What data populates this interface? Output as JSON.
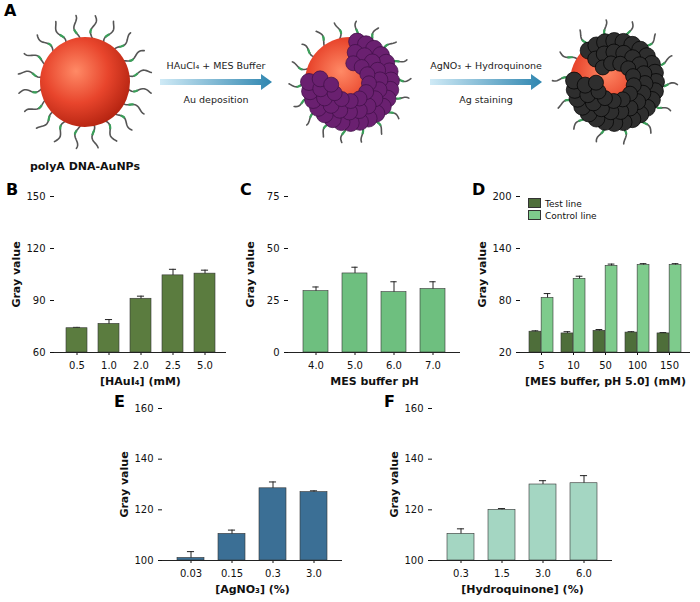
{
  "diagram": {
    "panel": "A",
    "particle_label": "polyA DNA-AuNPs",
    "steps": [
      {
        "reagents": "HAuCl₄ + MES Buffer",
        "process": "Au deposition"
      },
      {
        "reagents": "AgNO₃ + Hydroquinone",
        "process": "Ag staining"
      }
    ]
  },
  "chart_data": [
    {
      "panel": "B",
      "type": "bar",
      "categories": [
        "0.5",
        "1.0",
        "2.0",
        "2.5",
        "5.0"
      ],
      "values": [
        74,
        76.5,
        91,
        104.5,
        105.5
      ],
      "errors": [
        0.5,
        2.5,
        1.5,
        3.5,
        2
      ],
      "x_label": "[HAuI₄] (mM)",
      "y_label": "Gray value",
      "ylim": [
        60,
        150
      ],
      "yticks": [
        60,
        90,
        120,
        150
      ],
      "color": "#5b7c3f"
    },
    {
      "panel": "C",
      "type": "bar",
      "categories": [
        "4.0",
        "5.0",
        "6.0",
        "7.0"
      ],
      "values": [
        29.5,
        38,
        29,
        30.5
      ],
      "errors": [
        2,
        3,
        5,
        3.5
      ],
      "x_label": "MES buffer pH",
      "y_label": "Gray value",
      "ylim": [
        0,
        75
      ],
      "yticks": [
        0,
        25,
        50,
        75
      ],
      "color": "#6ebf7f"
    },
    {
      "panel": "D",
      "type": "bar",
      "categories": [
        "5",
        "10",
        "50",
        "100",
        "150"
      ],
      "series": [
        {
          "name": "Test line",
          "color": "#4e6e3a",
          "values": [
            44,
            42,
            45,
            43,
            42
          ],
          "errors": [
            1,
            2,
            1.5,
            1,
            1
          ]
        },
        {
          "name": "Control line",
          "color": "#7ecb8c",
          "values": [
            83,
            105,
            120,
            121,
            121
          ],
          "errors": [
            5,
            3,
            2,
            1.5,
            1.5
          ]
        }
      ],
      "x_label": "[MES buffer, pH 5.0] (mM)",
      "y_label": "Gray value",
      "ylim": [
        20,
        200
      ],
      "yticks": [
        20,
        80,
        140,
        200
      ],
      "legend": "top-left"
    },
    {
      "panel": "E",
      "type": "bar",
      "categories": [
        "0.03",
        "0.15",
        "0.3",
        "3.0"
      ],
      "values": [
        101,
        110.5,
        128.5,
        127
      ],
      "errors": [
        2.5,
        1.5,
        2.5,
        0.5
      ],
      "x_label": "[AgNO₃] (%)",
      "y_label": "Gray value",
      "ylim": [
        100,
        160
      ],
      "yticks": [
        100,
        120,
        140,
        160
      ],
      "color": "#3b6f95"
    },
    {
      "panel": "F",
      "type": "bar",
      "categories": [
        "0.3",
        "1.5",
        "3.0",
        "6.0"
      ],
      "values": [
        110.5,
        120,
        130,
        130.5
      ],
      "errors": [
        2,
        0.5,
        1.5,
        3
      ],
      "x_label": "[Hydroquinone] (%)",
      "y_label": "Gray value",
      "ylim": [
        100,
        160
      ],
      "yticks": [
        100,
        120,
        140,
        160
      ],
      "color": "#a4d6c2"
    }
  ]
}
